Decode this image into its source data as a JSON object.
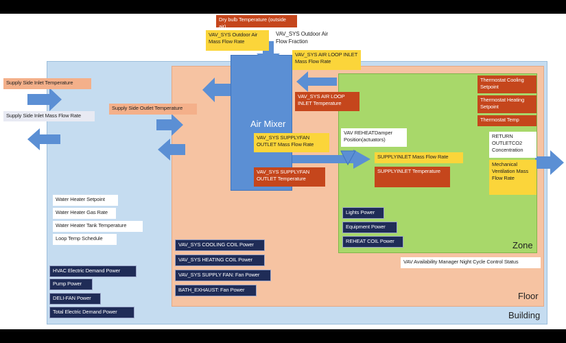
{
  "regions": {
    "building": "Building",
    "floor": "Floor",
    "zone": "Zone",
    "mixer": "Air Mixer"
  },
  "labels": {
    "dry_bulb": "Dry bulb Temperature (outside air)",
    "oa_mass_flow": "VAV_SYS Outdoor Air Mass Flow Rate",
    "oa_fraction": "VAV_SYS Outdoor Air Flow Fraction",
    "air_loop_inlet_mass": "VAV_SYS AIR LOOP INLET Mass Flow Rate",
    "air_loop_inlet_temp": "VAV_SYS AIR LOOP INLET Temperature",
    "supply_side_inlet_temp": "Supply Side Inlet Temperature",
    "supply_side_inlet_mass": "Supply Side Inlet Mass Flow Rate",
    "supply_side_outlet_temp": "Supply Side Outlet Temperature",
    "supply_fan_mass": "VAV_SYS SUPPLYFAN OUTLET Mass Flow Rate",
    "supply_fan_temp": "VAV_SYS SUPPLYFAN OUTLET Temperature",
    "reheat_damper": "VAV REHEATDamper Position(actuators)",
    "supply_inlet_mass": "SUPPLYINLET Mass Flow Rate",
    "supply_inlet_temp": "SUPPLYINLET Temperature",
    "tstat_cooling": "Thermostat Cooling Setpoint",
    "tstat_heating": "Thermostat Heating Setpoint",
    "tstat_temp": "Thermostat Temp",
    "return_co2": "RETURN OUTLETCO2 Concentration",
    "mech_vent": "Mechanical Ventilation Mass Flow Rate",
    "lights_power": "Lights Power",
    "equipment_power": "Equipment Power",
    "reheat_coil_power": "REHEAT COIL Power",
    "night_cycle": "VAV Availability Manager Night Cycle Control Status",
    "water_heater_setpoint": "Water Heater Setpoint",
    "water_heater_gas": "Water Heater Gas Rate",
    "water_heater_tank": "Water Heater Tank Temperature",
    "loop_temp_schedule": "Loop Temp Schedule",
    "cooling_coil_power": "VAV_SYS COOLING COIL Power",
    "heating_coil_power": "VAV_SYS HEATING COIL Power",
    "supply_fan_power": "VAV_SYS SUPPLY FAN: Fan Power",
    "bath_exhaust_power": "BATH_EXHAUST: Fan Power",
    "hvac_demand": "HVAC Electric Demand Power",
    "pump_power": "Pump Power",
    "deli_fan_power": "DELI-FAN Power",
    "total_demand": "Total Electric Demand Power"
  },
  "colors": {
    "building": "#c5dcf0",
    "floor": "#f6c3a2",
    "zone": "#a8d86a",
    "mixer": "#5b8fd4",
    "arrow": "#5b8fd4",
    "yellow_label": "#fbd53a",
    "red_label": "#c5461c",
    "navy_label": "#1f2c57"
  }
}
